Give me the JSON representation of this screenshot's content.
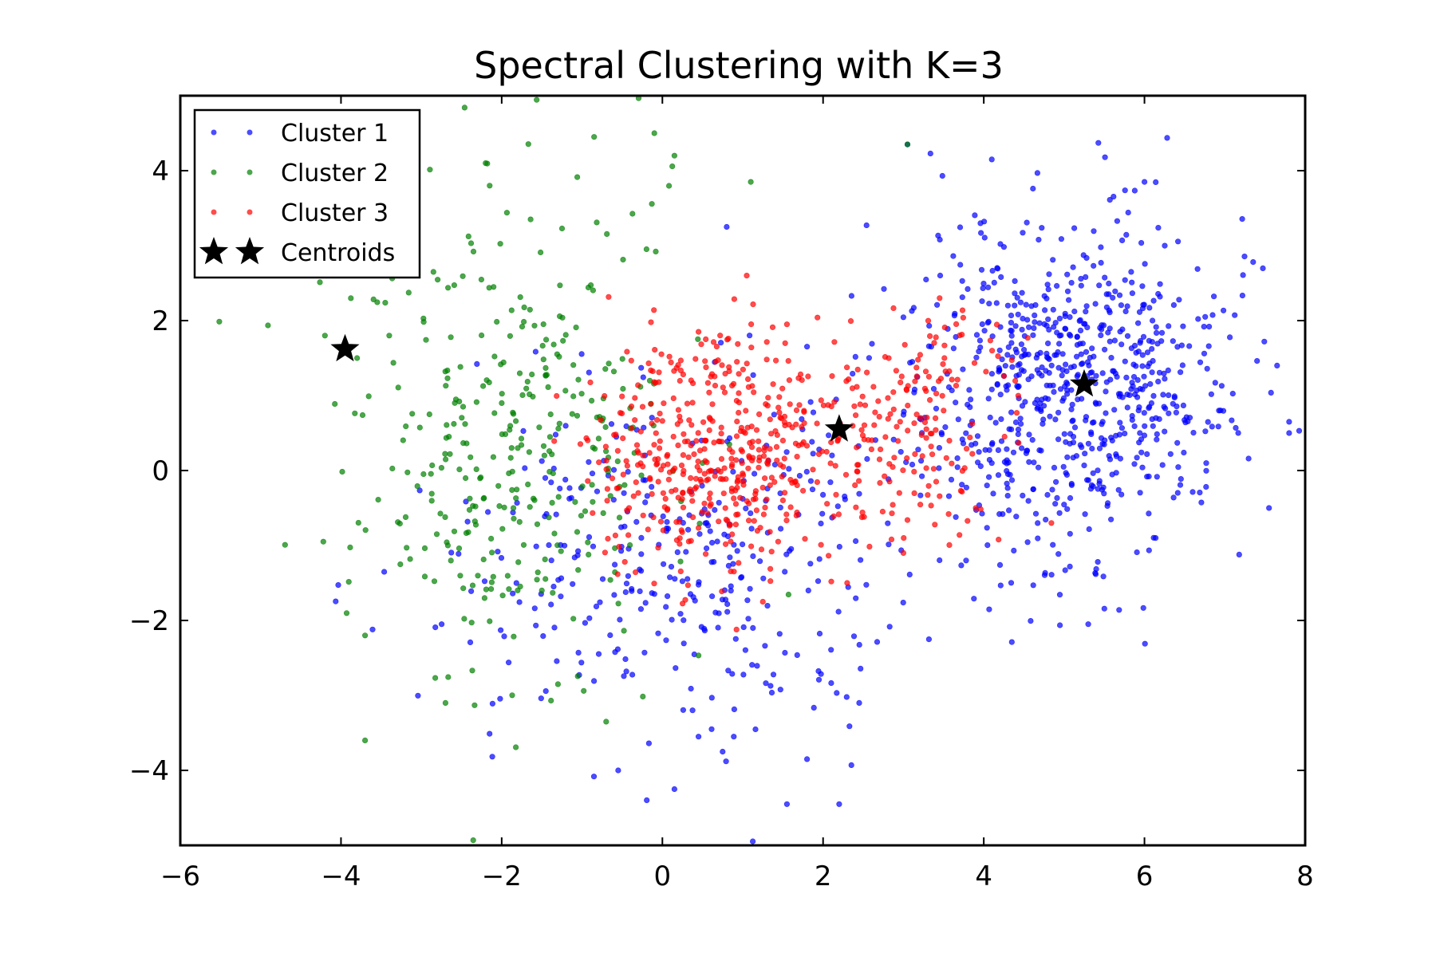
{
  "chart_data": {
    "type": "scatter",
    "title": "Spectral Clustering with K=3",
    "xlabel": "",
    "ylabel": "",
    "xlim": [
      -6,
      8
    ],
    "ylim": [
      -5,
      5
    ],
    "xticks": [
      -6,
      -4,
      -2,
      0,
      2,
      4,
      6,
      8
    ],
    "yticks": [
      -4,
      -2,
      0,
      2,
      4
    ],
    "xtick_labels": [
      "−6",
      "−4",
      "−2",
      "0",
      "2",
      "4",
      "6",
      "8"
    ],
    "ytick_labels": [
      "−4",
      "−2",
      "0",
      "2",
      "4"
    ],
    "grid": false,
    "legend_position": "top-left",
    "series": [
      {
        "name": "Cluster 1",
        "color": "#0000ff",
        "marker": "dot",
        "point_count": 1100,
        "regions": [
          {
            "cx": 5.0,
            "cy": 1.1,
            "sx": 1.0,
            "sy": 1.1,
            "weight": 0.68
          },
          {
            "cx": 0.3,
            "cy": -1.3,
            "sx": 1.4,
            "sy": 1.2,
            "weight": 0.32
          }
        ],
        "sample_points": [
          [
            4.1,
            4.15
          ],
          [
            3.05,
            4.35
          ],
          [
            7.8,
            0.65
          ],
          [
            7.8,
            0.5
          ],
          [
            7.55,
            -0.5
          ],
          [
            7.65,
            1.4
          ],
          [
            1.55,
            -4.45
          ],
          [
            2.2,
            -4.45
          ],
          [
            0.15,
            -4.25
          ],
          [
            -0.55,
            -4.0
          ],
          [
            1.8,
            -3.85
          ],
          [
            0.75,
            -3.75
          ],
          [
            0.45,
            -3.55
          ],
          [
            2.45,
            -3.1
          ],
          [
            5.3,
            -2.05
          ],
          [
            5.2,
            1.15
          ],
          [
            4.8,
            1.5
          ],
          [
            5.6,
            0.4
          ],
          [
            4.3,
            2.2
          ],
          [
            6.1,
            2.0
          ],
          [
            0.8,
            3.25
          ],
          [
            6.0,
            3.85
          ]
        ]
      },
      {
        "name": "Cluster 2",
        "color": "#008000",
        "marker": "dot",
        "point_count": 330,
        "regions": [
          {
            "cx": -1.9,
            "cy": 0.4,
            "sx": 1.0,
            "sy": 1.6,
            "weight": 1.0
          }
        ],
        "sample_points": [
          [
            -0.1,
            4.5
          ],
          [
            -0.85,
            4.45
          ],
          [
            3.05,
            4.35
          ],
          [
            0.15,
            4.2
          ],
          [
            -2.2,
            4.1
          ],
          [
            -2.15,
            3.8
          ],
          [
            1.1,
            3.85
          ],
          [
            -4.2,
            1.8
          ],
          [
            -3.8,
            1.5
          ],
          [
            -3.7,
            -2.2
          ],
          [
            -3.7,
            -3.6
          ],
          [
            -2.7,
            -3.1
          ],
          [
            -0.7,
            -3.35
          ],
          [
            -1.3,
            -2.85
          ],
          [
            -2.85,
            2.65
          ],
          [
            -3.4,
            1.8
          ],
          [
            -1.8,
            0.3
          ],
          [
            -2.0,
            0.9
          ],
          [
            -1.5,
            -1.6
          ]
        ]
      },
      {
        "name": "Cluster 3",
        "color": "#ff0000",
        "marker": "dot",
        "point_count": 620,
        "regions": [
          {
            "cx": 0.7,
            "cy": 0.2,
            "sx": 0.75,
            "sy": 0.8,
            "weight": 0.7
          },
          {
            "cx": 3.0,
            "cy": 0.6,
            "sx": 0.7,
            "sy": 0.8,
            "weight": 0.3
          }
        ],
        "sample_points": [
          [
            1.05,
            2.6
          ],
          [
            3.45,
            2.3
          ],
          [
            0.45,
            1.85
          ],
          [
            1.55,
            1.95
          ],
          [
            -0.3,
            -0.3
          ],
          [
            1.25,
            -1.75
          ],
          [
            2.3,
            -1.5
          ],
          [
            3.0,
            -1.1
          ],
          [
            3.9,
            -0.5
          ],
          [
            2.2,
            0.5
          ],
          [
            0.6,
            0.0
          ],
          [
            1.5,
            0.4
          ],
          [
            3.5,
            0.8
          ]
        ]
      },
      {
        "name": "Centroids",
        "color": "#000000",
        "marker": "star",
        "points": [
          [
            -3.95,
            1.62
          ],
          [
            2.2,
            0.55
          ],
          [
            5.25,
            1.15
          ]
        ]
      }
    ]
  }
}
